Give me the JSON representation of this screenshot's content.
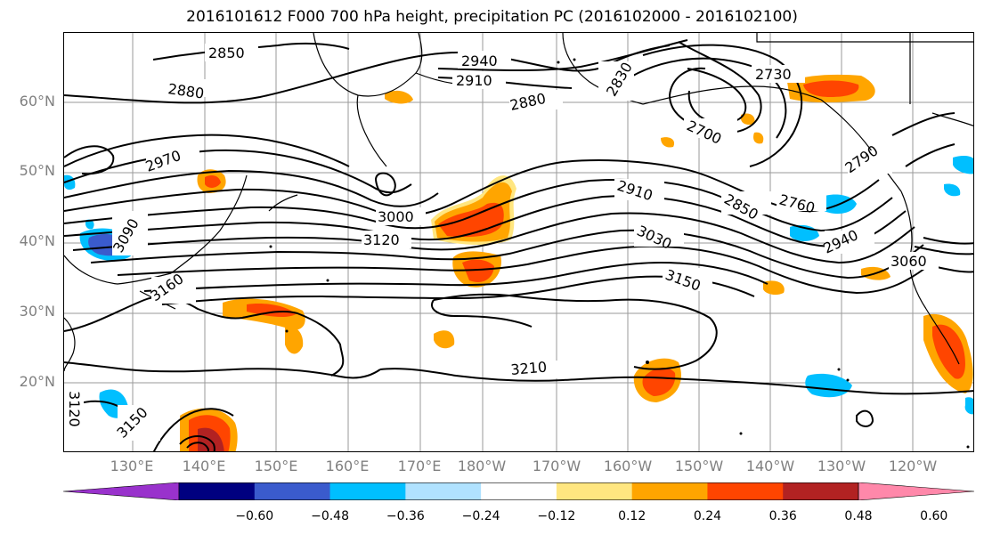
{
  "title": "2016101612 F000 700 hPa height, precipitation PC (2016102000 - 2016102100)",
  "lat_labels": [
    "60°N",
    "50°N",
    "40°N",
    "30°N",
    "20°N"
  ],
  "lon_labels": [
    "130°E",
    "140°E",
    "150°E",
    "160°E",
    "170°E",
    "180°W",
    "170°W",
    "160°W",
    "150°W",
    "140°W",
    "130°W",
    "120°W"
  ],
  "contour_labels": [
    "2850",
    "2940",
    "2910",
    "2880",
    "2830",
    "2730",
    "2700",
    "2880",
    "2970",
    "3000",
    "3120",
    "2910",
    "2850",
    "2760",
    "2790",
    "3090",
    "3030",
    "2940",
    "3060",
    "3150",
    "3160",
    "3210",
    "3150",
    "3120"
  ],
  "colorbar": {
    "ticks": [
      "−0.60",
      "−0.48",
      "−0.36",
      "−0.24",
      "−0.12",
      "0.12",
      "0.24",
      "0.36",
      "0.48",
      "0.60"
    ],
    "colors": [
      "#9932cc",
      "#000080",
      "#3a5bcd",
      "#00bfff",
      "#b0e2ff",
      "#ffffff",
      "#ffe680",
      "#ffa500",
      "#ff4500",
      "#b22222",
      "#ff88aa"
    ]
  },
  "shading_colors": {
    "pos_low": "#ffe680",
    "pos_mid": "#ffa500",
    "pos_high": "#ff4500",
    "pos_max": "#b22222",
    "neg_low": "#b0e2ff",
    "neg_mid": "#00bfff",
    "neg_high": "#3a5bcd"
  }
}
